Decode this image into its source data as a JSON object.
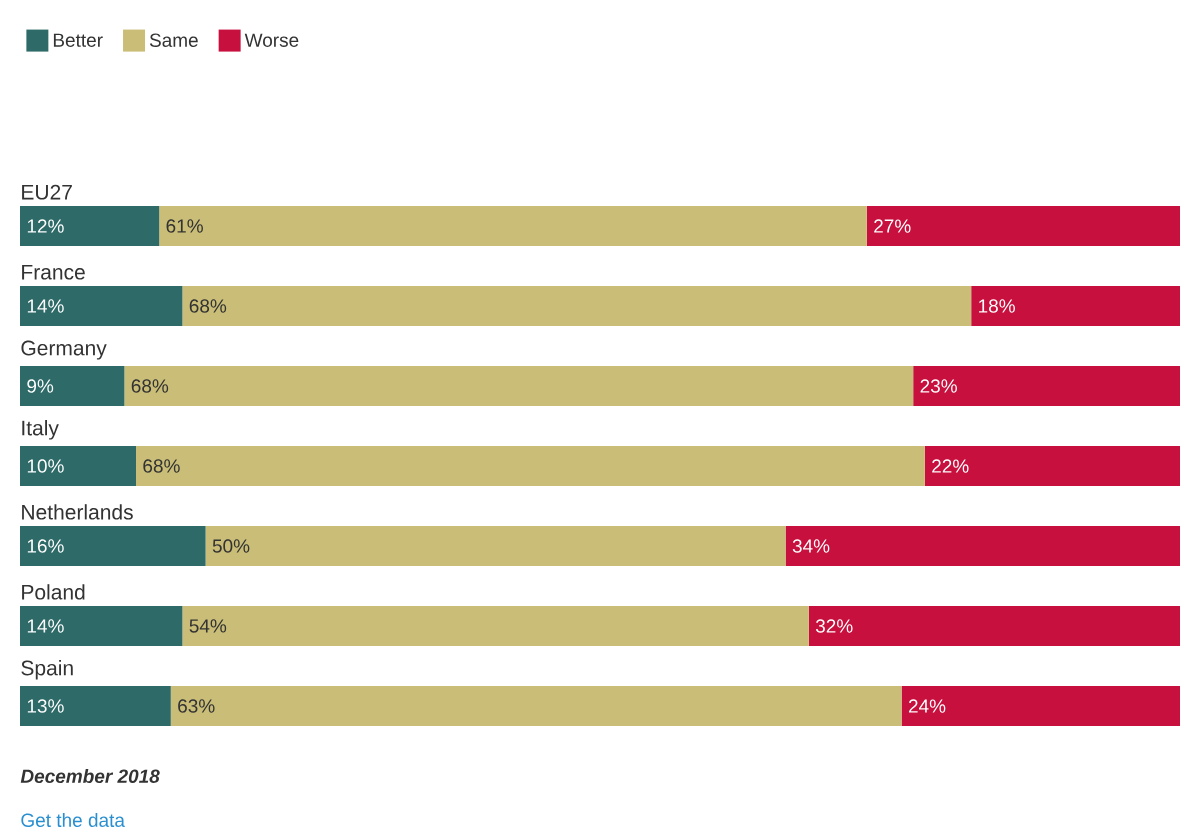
{
  "chart_data": {
    "type": "bar",
    "orientation": "horizontal",
    "stacked": true,
    "legend": "top left",
    "categories": [
      "EU27",
      "France",
      "Germany",
      "Italy",
      "Netherlands",
      "Poland",
      "Spain"
    ],
    "series": [
      {
        "name": "Better",
        "color": "#2e6b68",
        "values": [
          12,
          14,
          9,
          10,
          16,
          14,
          13
        ],
        "value_labels": [
          "12%",
          "14%",
          "9%",
          "10%",
          "16%",
          "14%",
          "13%"
        ]
      },
      {
        "name": "Same",
        "color": "#c9bd77",
        "values": [
          61,
          68,
          68,
          68,
          50,
          54,
          63
        ],
        "value_labels": [
          "61%",
          "68%",
          "68%",
          "68%",
          "50%",
          "54%",
          "63%"
        ]
      },
      {
        "name": "Worse",
        "color": "#c8103e",
        "values": [
          27,
          18,
          23,
          22,
          34,
          32,
          24
        ],
        "value_labels": [
          "27%",
          "18%",
          "23%",
          "22%",
          "34%",
          "32%",
          "24%"
        ]
      }
    ],
    "annotations": [
      "December 2018",
      "Get the data"
    ]
  }
}
